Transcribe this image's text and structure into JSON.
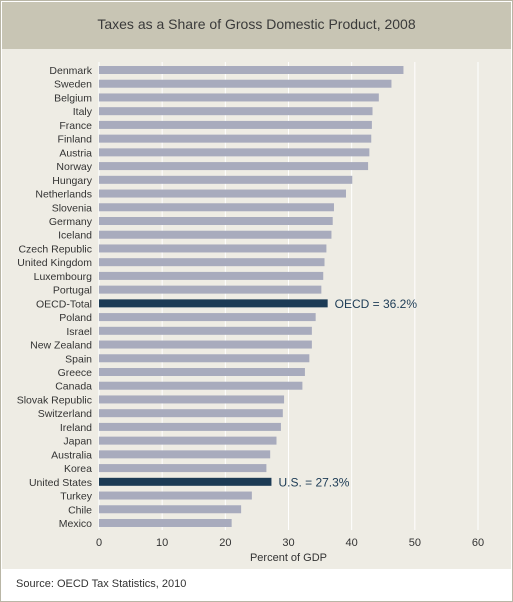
{
  "source": "Source: OECD Tax Statistics, 2010",
  "colors": {
    "bar": "#a8abbd",
    "highlight": "#1c3b55",
    "grid": "#ffffff",
    "plot_background": "#eeece4",
    "title_band": "#c8c5b4"
  },
  "chart_data": {
    "type": "bar",
    "orientation": "horizontal",
    "title": "Taxes as a Share of Gross Domestic Product, 2008",
    "xlabel": "Percent of GDP",
    "ylabel": "",
    "xlim": [
      0,
      60
    ],
    "xticks": [
      0,
      10,
      20,
      30,
      40,
      50,
      60
    ],
    "grid": true,
    "categories": [
      "Denmark",
      "Sweden",
      "Belgium",
      "Italy",
      "France",
      "Finland",
      "Austria",
      "Norway",
      "Hungary",
      "Netherlands",
      "Slovenia",
      "Germany",
      "Iceland",
      "Czech Republic",
      "United Kingdom",
      "Luxembourg",
      "Portugal",
      "OECD-Total",
      "Poland",
      "Israel",
      "New Zealand",
      "Spain",
      "Greece",
      "Canada",
      "Slovak Republic",
      "Switzerland",
      "Ireland",
      "Japan",
      "Australia",
      "Korea",
      "United States",
      "Turkey",
      "Chile",
      "Mexico"
    ],
    "values": [
      48.2,
      46.3,
      44.3,
      43.3,
      43.2,
      43.1,
      42.8,
      42.6,
      40.1,
      39.1,
      37.2,
      37.0,
      36.8,
      36.0,
      35.7,
      35.5,
      35.2,
      36.2,
      34.3,
      33.7,
      33.7,
      33.3,
      32.6,
      32.2,
      29.3,
      29.1,
      28.8,
      28.1,
      27.1,
      26.5,
      27.3,
      24.2,
      22.5,
      21.0
    ],
    "highlight": [
      "OECD-Total",
      "United States"
    ],
    "annotations": [
      {
        "category": "OECD-Total",
        "text": "OECD = 36.2%"
      },
      {
        "category": "United States",
        "text": "U.S. = 27.3%"
      }
    ]
  }
}
